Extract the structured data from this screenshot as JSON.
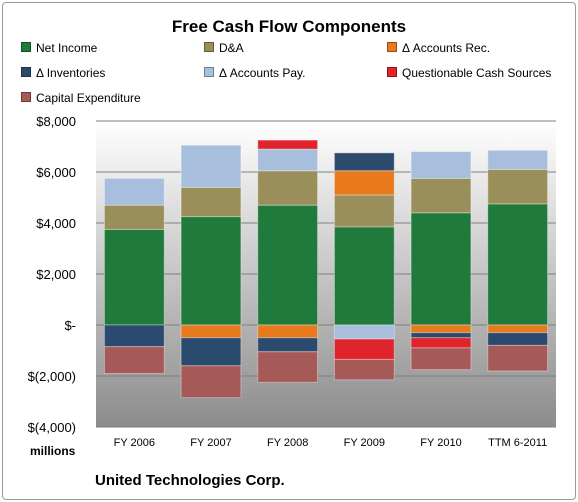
{
  "chart_data": {
    "type": "stacked-bar",
    "title": "Free Cash Flow Components",
    "units_label": "millions",
    "footer": "United Technologies Corp.",
    "categories": [
      "FY 2006",
      "FY 2007",
      "FY 2008",
      "FY 2009",
      "FY 2010",
      "TTM 6-2011"
    ],
    "y_ticks": [
      "$8,000",
      "$6,000",
      "$4,000",
      "$2,000",
      "$-",
      "$(2,000)",
      "$(4,000)"
    ],
    "ylim": [
      -4000,
      8000
    ],
    "grid": true,
    "legend_position": "top",
    "series": [
      {
        "name": "Net Income",
        "color": "#1f7a3c",
        "values": [
          3750,
          4250,
          4700,
          3850,
          4400,
          4750
        ]
      },
      {
        "name": "D&A",
        "color": "#9a8f5a",
        "values": [
          950,
          1150,
          1350,
          1250,
          1350,
          1350
        ]
      },
      {
        "name": "Δ Accounts Rec.",
        "color": "#e8791d",
        "values": [
          0,
          -500,
          -500,
          950,
          -300,
          -300
        ]
      },
      {
        "name": "Δ Inventories",
        "color": "#2c4a6e",
        "values": [
          -850,
          -1100,
          -550,
          700,
          -200,
          -500
        ]
      },
      {
        "name": "Δ Accounts Pay.",
        "color": "#a7bfdd",
        "values": [
          1050,
          1650,
          850,
          -550,
          1050,
          750
        ]
      },
      {
        "name": "Questionable Cash Sources",
        "color": "#e0242c",
        "values": [
          0,
          0,
          350,
          -800,
          -400,
          0
        ]
      },
      {
        "name": "Capital Expenditure",
        "color": "#a65a58",
        "values": [
          -1050,
          -1250,
          -1200,
          -800,
          -850,
          -1000
        ]
      }
    ]
  }
}
